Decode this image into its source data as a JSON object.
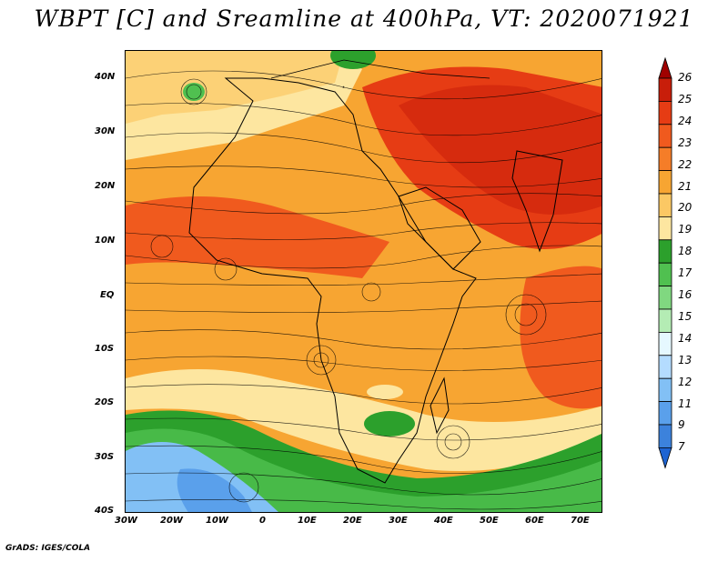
{
  "title": "WBPT [C] and Sreamline at 400hPa, VT: 2020071921",
  "footer": "GrADS: IGES/COLA",
  "lat_labels": [
    "40N",
    "30N",
    "20N",
    "10N",
    "EQ",
    "10S",
    "20S",
    "30S",
    "40S"
  ],
  "lon_labels": [
    "30W",
    "20W",
    "10W",
    "0",
    "10E",
    "20E",
    "30E",
    "40E",
    "50E",
    "60E",
    "70E"
  ],
  "colorbar": {
    "levels": [
      "26",
      "25",
      "24",
      "23",
      "22",
      "21",
      "20",
      "19",
      "18",
      "17",
      "16",
      "15",
      "14",
      "13",
      "12",
      "11",
      "9",
      "7"
    ],
    "colors": [
      "#a00000",
      "#c81e0a",
      "#e63c14",
      "#f05a1e",
      "#f57d28",
      "#f7a532",
      "#fbc864",
      "#fde6a0",
      "#2ca02c",
      "#50c050",
      "#80d880",
      "#b4ecb4",
      "#e6f8ff",
      "#b4dcff",
      "#82c0f5",
      "#5aa0eb",
      "#3c82dc",
      "#1e64d2"
    ]
  }
}
